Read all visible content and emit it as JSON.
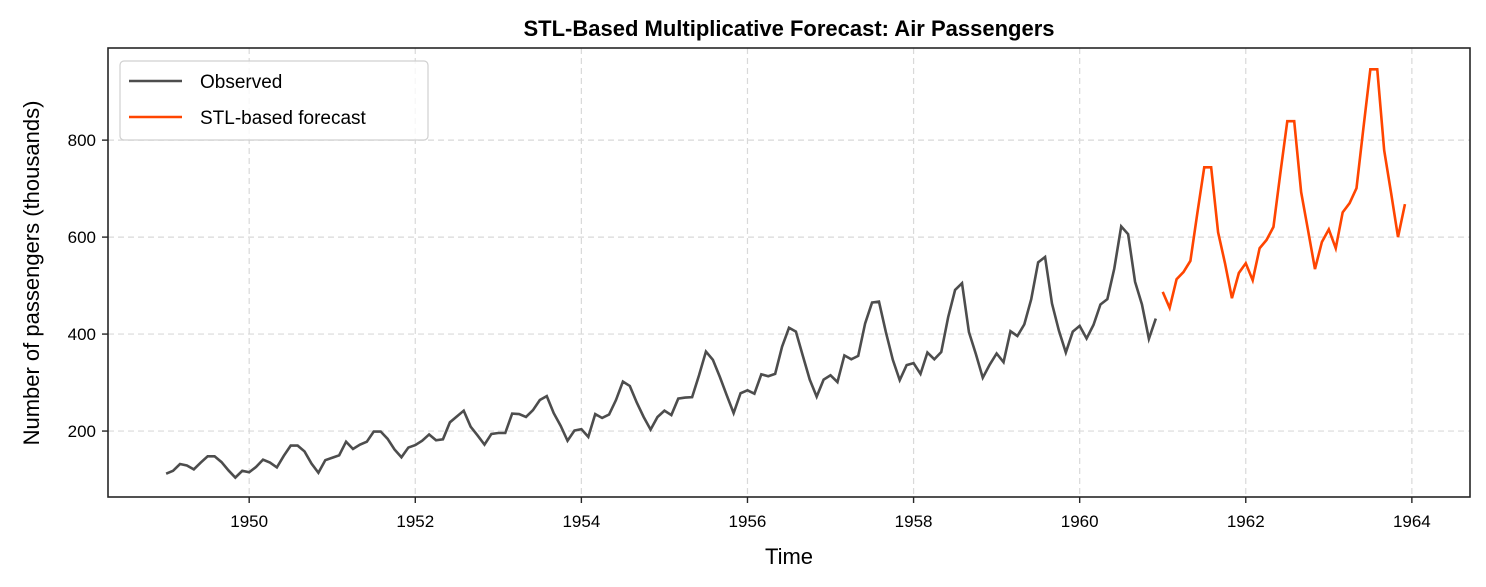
{
  "chart_data": {
    "type": "line",
    "title": "STL-Based Multiplicative Forecast: Air Passengers",
    "xlabel": "Time",
    "ylabel": "Number of passengers (thousands)",
    "xlim": [
      1948.3,
      1964.7
    ],
    "ylim": [
      64,
      990
    ],
    "grid": true,
    "legend_position": "top-left",
    "xticks": [
      1950,
      1952,
      1954,
      1956,
      1958,
      1960,
      1962,
      1964
    ],
    "xtick_labels": [
      "1950",
      "1952",
      "1954",
      "1956",
      "1958",
      "1960",
      "1962",
      "1964"
    ],
    "yticks": [
      200,
      400,
      600,
      800
    ],
    "ytick_labels": [
      "200",
      "400",
      "600",
      "800"
    ],
    "series": [
      {
        "name": "Observed",
        "color": "#4d4d4d",
        "x_start": 1949.0,
        "x_step": 0.08333333,
        "values": [
          112,
          118,
          132,
          129,
          121,
          135,
          148,
          148,
          136,
          119,
          104,
          118,
          115,
          126,
          141,
          135,
          125,
          149,
          170,
          170,
          158,
          133,
          114,
          140,
          145,
          150,
          178,
          163,
          172,
          178,
          199,
          199,
          184,
          162,
          146,
          166,
          171,
          180,
          193,
          181,
          183,
          218,
          230,
          242,
          209,
          191,
          172,
          194,
          196,
          196,
          236,
          235,
          229,
          243,
          264,
          272,
          237,
          211,
          180,
          201,
          204,
          188,
          235,
          227,
          234,
          264,
          302,
          293,
          259,
          229,
          203,
          229,
          242,
          233,
          267,
          269,
          270,
          315,
          364,
          347,
          312,
          274,
          237,
          278,
          284,
          277,
          317,
          313,
          318,
          374,
          413,
          405,
          355,
          306,
          271,
          306,
          315,
          301,
          356,
          348,
          355,
          422,
          465,
          467,
          404,
          347,
          305,
          336,
          340,
          318,
          362,
          348,
          363,
          435,
          491,
          505,
          404,
          359,
          310,
          337,
          360,
          342,
          406,
          396,
          420,
          472,
          548,
          559,
          463,
          407,
          362,
          405,
          417,
          391,
          419,
          461,
          472,
          535,
          622,
          606,
          508,
          461,
          390,
          432
        ]
      },
      {
        "name": "STL-based forecast",
        "color": "#ff4500",
        "x_start": 1961.0,
        "x_step": 0.08333333,
        "values": [
          487,
          454,
          513,
          528,
          551,
          649,
          744,
          744,
          610,
          546,
          474,
          526,
          546,
          511,
          577,
          594,
          621,
          732,
          839,
          839,
          693,
          614,
          534,
          590,
          616,
          577,
          651,
          670,
          701,
          825,
          946,
          946,
          779,
          691,
          600,
          668
        ]
      }
    ]
  }
}
